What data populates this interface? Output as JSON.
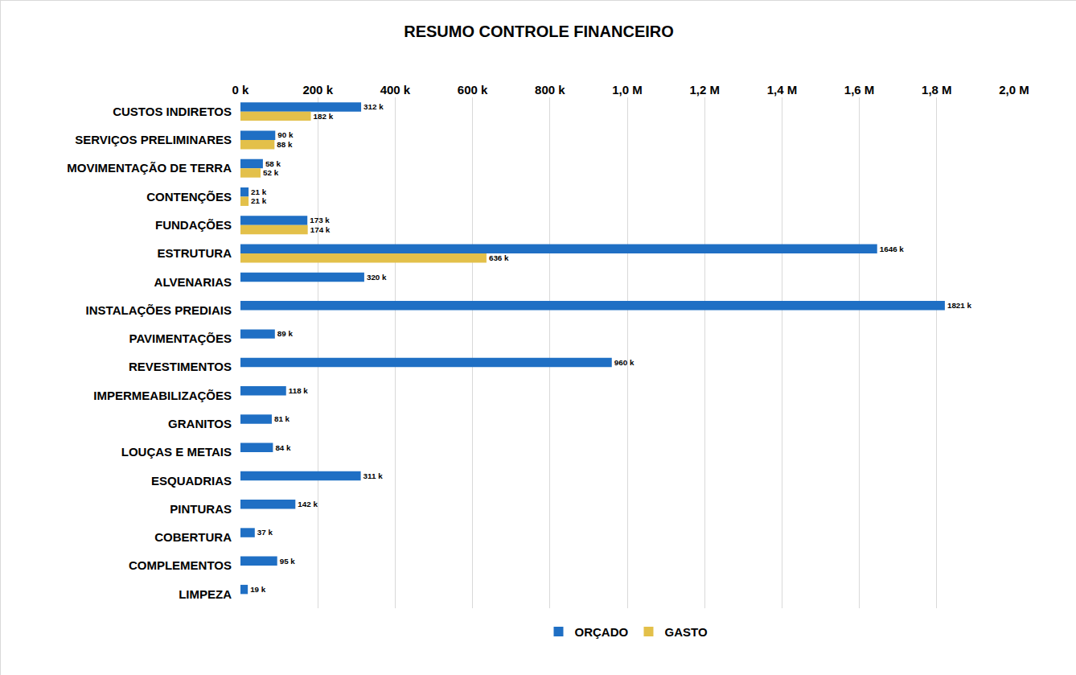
{
  "chart_data": {
    "type": "bar",
    "orientation": "horizontal",
    "title": "RESUMO CONTROLE FINANCEIRO",
    "categories": [
      "CUSTOS INDIRETOS",
      "SERVIÇOS PRELIMINARES",
      "MOVIMENTAÇÃO DE TERRA",
      "CONTENÇÕES",
      "FUNDAÇÕES",
      "ESTRUTURA",
      "ALVENARIAS",
      "INSTALAÇÕES PREDIAIS",
      "PAVIMENTAÇÕES",
      "REVESTIMENTOS",
      "IMPERMEABILIZAÇÕES",
      "GRANITOS",
      "LOUÇAS E METAIS",
      "ESQUADRIAS",
      "PINTURAS",
      "COBERTURA",
      "COMPLEMENTOS",
      "LIMPEZA"
    ],
    "series": [
      {
        "name": "ORÇADO",
        "color": "#1f6fc4",
        "values": [
          312000,
          90000,
          58000,
          21000,
          173000,
          1646000,
          320000,
          1821000,
          89000,
          960000,
          118000,
          81000,
          84000,
          311000,
          142000,
          37000,
          95000,
          19000
        ],
        "value_labels": [
          "312 k",
          "90 k",
          "58 k",
          "21 k",
          "173 k",
          "1646 k",
          "320 k",
          "1821 k",
          "89 k",
          "960 k",
          "118 k",
          "81 k",
          "84 k",
          "311 k",
          "142 k",
          "37 k",
          "95 k",
          "19 k"
        ]
      },
      {
        "name": "GASTO",
        "color": "#e3c04a",
        "values": [
          182000,
          88000,
          52000,
          21000,
          174000,
          636000,
          null,
          null,
          null,
          null,
          null,
          null,
          null,
          null,
          null,
          null,
          null,
          null
        ],
        "value_labels": [
          "182 k",
          "88 k",
          "52 k",
          "21 k",
          "174 k",
          "636 k",
          null,
          null,
          null,
          null,
          null,
          null,
          null,
          null,
          null,
          null,
          null,
          null
        ]
      }
    ],
    "xlim": [
      0,
      2000000
    ],
    "xticks": [
      {
        "value": 0,
        "label": "0 k"
      },
      {
        "value": 200000,
        "label": "200 k"
      },
      {
        "value": 400000,
        "label": "400 k"
      },
      {
        "value": 600000,
        "label": "600 k"
      },
      {
        "value": 800000,
        "label": "800 k"
      },
      {
        "value": 1000000,
        "label": "1,0 M"
      },
      {
        "value": 1200000,
        "label": "1,2 M"
      },
      {
        "value": 1400000,
        "label": "1,4 M"
      },
      {
        "value": 1600000,
        "label": "1,6 M"
      },
      {
        "value": 1800000,
        "label": "1,8 M"
      },
      {
        "value": 2000000,
        "label": "2,0 M"
      }
    ],
    "grid": true,
    "legend": "bottom",
    "data_labels": true
  }
}
